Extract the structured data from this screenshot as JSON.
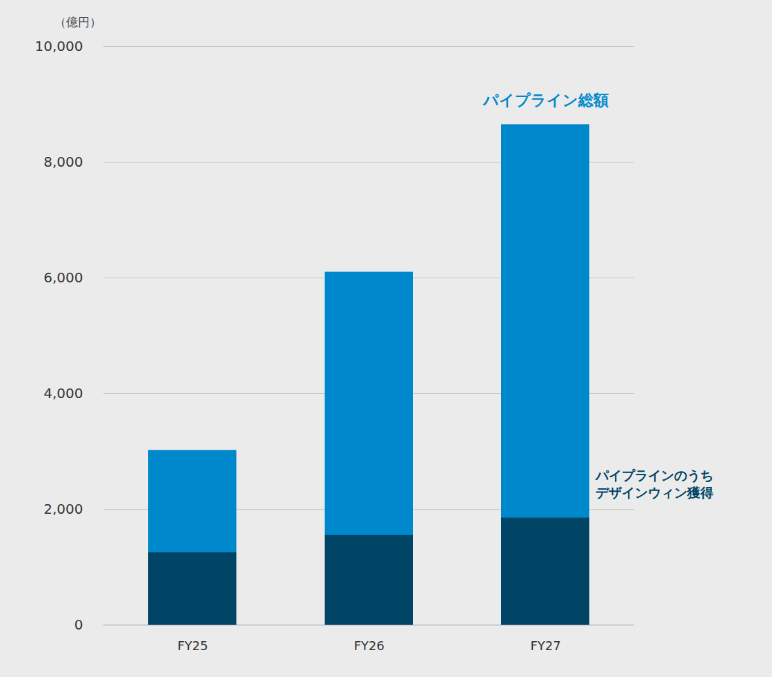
{
  "chart_data": {
    "type": "bar",
    "y_label": "（億円）",
    "categories": [
      "FY25",
      "FY26",
      "FY27"
    ],
    "series": [
      {
        "name": "パイプライン総額",
        "color": "#0088cc",
        "values": [
          3020,
          6100,
          8650
        ]
      },
      {
        "name": "パイプラインのうち\nデザインウィン獲得",
        "color": "#004466",
        "values": [
          1250,
          1550,
          1850
        ]
      }
    ],
    "stacked": false,
    "ylim": [
      0,
      10000
    ],
    "yticks": [
      0,
      {
        "value": 2000,
        "label": "2,000"
      },
      {
        "value": 4000,
        "label": "4,000"
      },
      {
        "value": 6000,
        "label": "6,000"
      },
      {
        "value": 8000,
        "label": "8,000"
      },
      {
        "value": 10000,
        "label": "10,000"
      }
    ],
    "grid": true
  }
}
